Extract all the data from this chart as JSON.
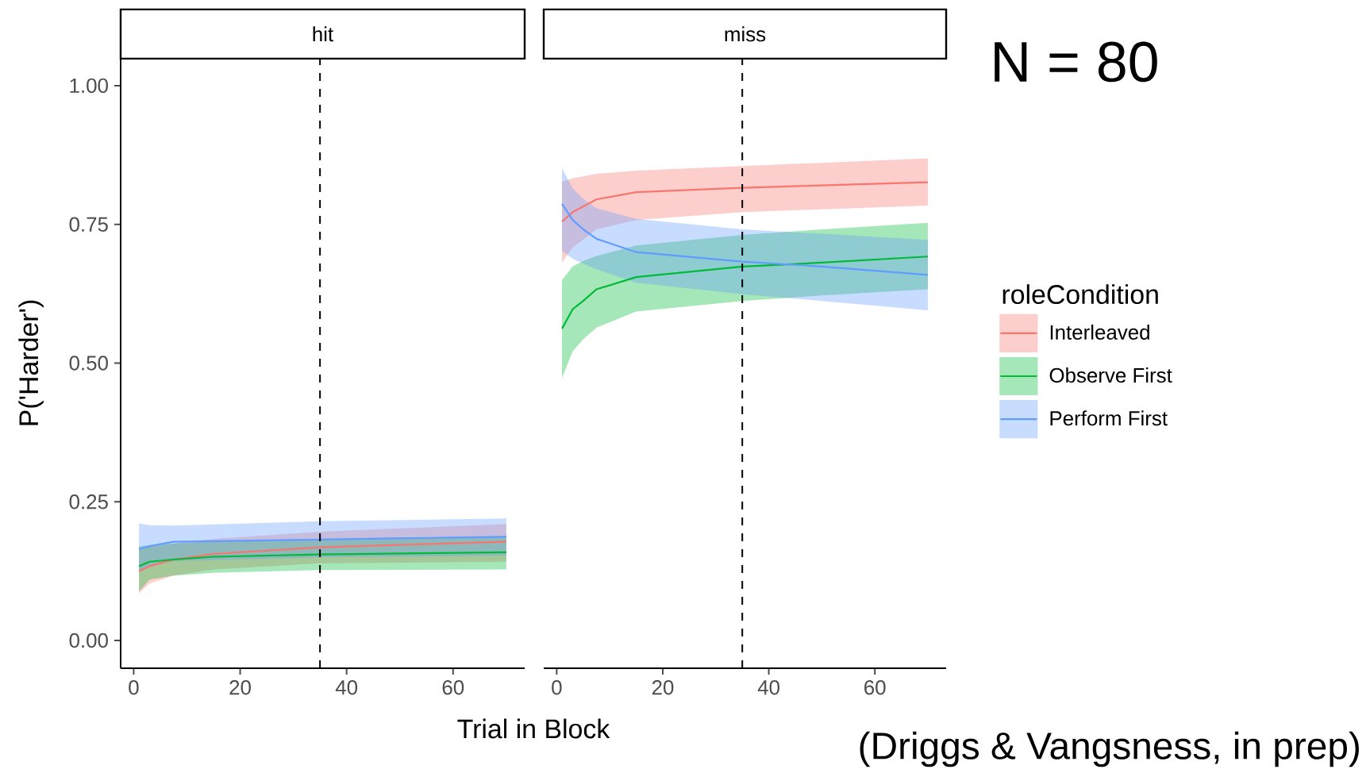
{
  "chart_data": [
    {
      "type": "line",
      "title": "hit",
      "xlabel": "Trial in Block",
      "ylabel": "P('Harder')",
      "xlim": [
        -2.45,
        73.45
      ],
      "ylim": [
        -0.05,
        1.05
      ],
      "xticks": [
        0,
        20,
        40,
        60
      ],
      "yticks": [
        {
          "value": 0,
          "label": "0.00"
        },
        {
          "value": 0.25,
          "label": "0.25"
        },
        {
          "value": 0.5,
          "label": "0.50"
        },
        {
          "value": 0.75,
          "label": "0.75"
        },
        {
          "value": 1,
          "label": "1.00"
        }
      ],
      "ref_lines": [
        {
          "axis": "x",
          "value": 35,
          "color": "#000000",
          "line_style": "dashed"
        }
      ],
      "series": [
        {
          "color": "#f8766d",
          "x": [
            1,
            3,
            7.5,
            15,
            35,
            70
          ],
          "values": [
            0.125,
            0.134,
            0.146,
            0.156,
            0.168,
            0.178
          ],
          "lower": [
            0.085,
            0.103,
            0.117,
            0.128,
            0.139,
            0.142
          ],
          "upper": [
            0.165,
            0.168,
            0.175,
            0.183,
            0.196,
            0.21
          ]
        },
        {
          "color": "#00ba38",
          "x": [
            1,
            3,
            7.5,
            15,
            35,
            70
          ],
          "values": [
            0.134,
            0.142,
            0.146,
            0.151,
            0.155,
            0.159
          ],
          "lower": [
            0.089,
            0.11,
            0.117,
            0.122,
            0.127,
            0.128
          ],
          "upper": [
            0.17,
            0.172,
            0.175,
            0.178,
            0.183,
            0.188
          ]
        },
        {
          "color": "#619cff",
          "x": [
            1,
            3,
            7.5,
            35,
            70
          ],
          "values": [
            0.165,
            0.17,
            0.178,
            0.182,
            0.187
          ],
          "lower": [
            0.125,
            0.135,
            0.143,
            0.15,
            0.153
          ],
          "upper": [
            0.211,
            0.208,
            0.207,
            0.215,
            0.22
          ]
        }
      ]
    },
    {
      "type": "line",
      "title": "miss",
      "legend_title": "roleCondition",
      "legend": "right",
      "tick_labels": "x",
      "xlim": [
        -2.45,
        73.45
      ],
      "ylim": [
        -0.05,
        1.05
      ],
      "xticks": [
        0,
        20,
        40,
        60
      ],
      "ref_lines": [
        {
          "axis": "x",
          "value": 35,
          "color": "#000000",
          "line_style": "dashed"
        }
      ],
      "annotations": [
        "N = 80",
        "(Driggs & Vangsness, in prep)"
      ],
      "series": [
        {
          "name": "Interleaved",
          "color": "#f8766d",
          "x": [
            1,
            3,
            7.5,
            15,
            35,
            70
          ],
          "values": [
            0.755,
            0.772,
            0.795,
            0.808,
            0.816,
            0.826
          ],
          "lower": [
            0.681,
            0.708,
            0.741,
            0.758,
            0.772,
            0.784
          ],
          "upper": [
            0.827,
            0.833,
            0.841,
            0.847,
            0.855,
            0.869
          ]
        },
        {
          "name": "Observe First",
          "color": "#00ba38",
          "x": [
            1,
            3,
            5,
            7.5,
            15,
            35,
            50,
            70
          ],
          "values": [
            0.562,
            0.597,
            0.612,
            0.633,
            0.655,
            0.674,
            0.681,
            0.692
          ],
          "lower": [
            0.473,
            0.521,
            0.543,
            0.564,
            0.593,
            0.612,
            0.622,
            0.633
          ],
          "upper": [
            0.65,
            0.674,
            0.684,
            0.693,
            0.712,
            0.731,
            0.741,
            0.753
          ]
        },
        {
          "name": "Perform First",
          "color": "#619cff",
          "x": [
            1,
            3,
            5,
            7.5,
            15,
            35,
            50,
            70
          ],
          "values": [
            0.787,
            0.758,
            0.741,
            0.724,
            0.7,
            0.683,
            0.674,
            0.659
          ],
          "lower": [
            0.702,
            0.688,
            0.679,
            0.669,
            0.645,
            0.624,
            0.612,
            0.595
          ],
          "upper": [
            0.851,
            0.815,
            0.796,
            0.779,
            0.76,
            0.741,
            0.733,
            0.722
          ]
        }
      ]
    }
  ]
}
